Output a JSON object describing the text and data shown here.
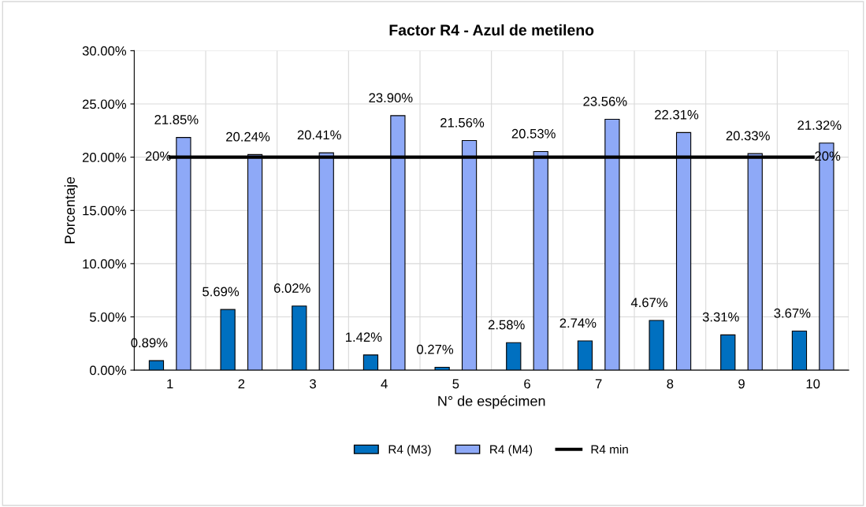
{
  "chart_data": {
    "type": "bar",
    "title": "Factor R4 - Azul de metileno",
    "xlabel": "N° de espécimen",
    "ylabel": "Porcentaje",
    "categories": [
      "1",
      "2",
      "3",
      "4",
      "5",
      "6",
      "7",
      "8",
      "9",
      "10"
    ],
    "series": [
      {
        "name": "R4 (M3)",
        "color": "#0070c0",
        "values": [
          0.89,
          5.69,
          6.02,
          1.42,
          0.27,
          2.58,
          2.74,
          4.67,
          3.31,
          3.67
        ],
        "value_labels": [
          "0.89%",
          "5.69%",
          "6.02%",
          "1.42%",
          "0.27%",
          "2.58%",
          "2.74%",
          "4.67%",
          "3.31%",
          "3.67%"
        ]
      },
      {
        "name": "R4 (M4)",
        "color": "#8ea9f7",
        "values": [
          21.85,
          20.24,
          20.41,
          23.9,
          21.56,
          20.53,
          23.56,
          22.31,
          20.33,
          21.32
        ],
        "value_labels": [
          "21.85%",
          "20.24%",
          "20.41%",
          "23.90%",
          "21.56%",
          "20.53%",
          "23.56%",
          "22.31%",
          "20.33%",
          "21.32%"
        ]
      },
      {
        "name": "R4 min",
        "type": "line",
        "color": "#000000",
        "values": [
          20,
          20,
          20,
          20,
          20,
          20,
          20,
          20,
          20,
          20
        ],
        "value_labels": [
          "20%",
          null,
          null,
          null,
          null,
          null,
          null,
          null,
          null,
          "20%"
        ]
      }
    ],
    "ylim": [
      0,
      30
    ],
    "yticks": [
      {
        "value": 0,
        "label": "0.00%"
      },
      {
        "value": 5,
        "label": "5.00%"
      },
      {
        "value": 10,
        "label": "10.00%"
      },
      {
        "value": 15,
        "label": "15.00%"
      },
      {
        "value": 20,
        "label": "20.00%"
      },
      {
        "value": 25,
        "label": "25.00%"
      },
      {
        "value": 30,
        "label": "30.00%"
      }
    ],
    "grid": true,
    "legend": "bottom",
    "marker": "none",
    "line_style": "solid"
  }
}
